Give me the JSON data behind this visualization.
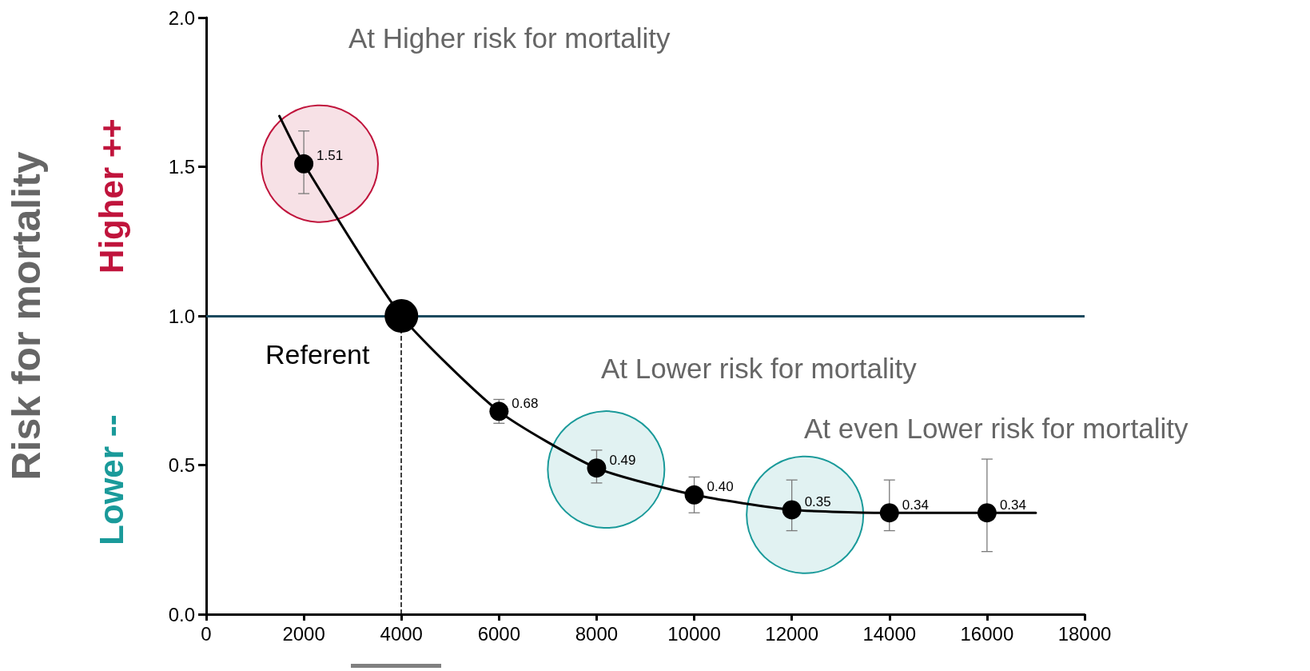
{
  "chart_data": {
    "type": "scatter",
    "ylabel": "Risk for mortality",
    "xlim": [
      0,
      18000
    ],
    "xticks": [
      0,
      2000,
      4000,
      6000,
      8000,
      10000,
      12000,
      14000,
      16000,
      18000
    ],
    "ylim": [
      0,
      2.0
    ],
    "yticks": [
      {
        "value": 0,
        "label": "0.0"
      },
      {
        "value": 0.5,
        "label": "0.5"
      },
      {
        "value": 1,
        "label": "1.0"
      },
      {
        "value": 1.5,
        "label": "1.5"
      },
      {
        "value": 2,
        "label": "2.0"
      }
    ],
    "grid": false,
    "marker": "circle",
    "series": [
      {
        "type": "line",
        "color": "#000000",
        "marker": "none",
        "x": [
          1500,
          2000,
          4000,
          6000,
          8000,
          10000,
          12000,
          14000,
          16000,
          17000
        ],
        "values": [
          1.67,
          1.51,
          1.0,
          0.68,
          0.49,
          0.4,
          0.35,
          0.34,
          0.34,
          0.34
        ]
      },
      {
        "color": "#000000",
        "x": [
          2000,
          4000,
          6000,
          8000,
          10000,
          12000,
          14000,
          16000
        ],
        "values": [
          1.51,
          1.0,
          0.68,
          0.49,
          0.4,
          0.35,
          0.34,
          0.34
        ],
        "errors": [
          [
            1.41,
            1.62
          ],
          null,
          [
            0.64,
            0.72
          ],
          [
            0.44,
            0.55
          ],
          [
            0.34,
            0.46
          ],
          [
            0.28,
            0.45
          ],
          [
            0.28,
            0.45
          ],
          [
            0.21,
            0.52
          ]
        ],
        "value_labels": [
          "1.51",
          null,
          "0.68",
          "0.49",
          "0.40",
          "0.35",
          "0.34",
          "0.34"
        ]
      },
      {
        "type": "bubble",
        "color": "#c0143c",
        "x": [
          2325
        ],
        "values": [
          1.51
        ],
        "sizes": [
          1
        ]
      },
      {
        "type": "bubble",
        "color": "#1a9a9a",
        "x": [
          8195,
          12270
        ],
        "values": [
          0.485,
          0.333
        ],
        "sizes": [
          1,
          1
        ]
      }
    ],
    "ref_lines": [
      {
        "axis": "y",
        "value": 1.0,
        "color": "#1b4a5e",
        "line_style": "solid"
      },
      {
        "axis": "x",
        "value": 4000,
        "label": "Referent",
        "color": "#000000",
        "line_style": "dashed"
      }
    ],
    "annotations": [
      "Higher ++",
      "Lower --",
      "At Higher risk for mortality",
      "At Lower risk for mortality",
      "At even Lower risk for mortality"
    ]
  }
}
